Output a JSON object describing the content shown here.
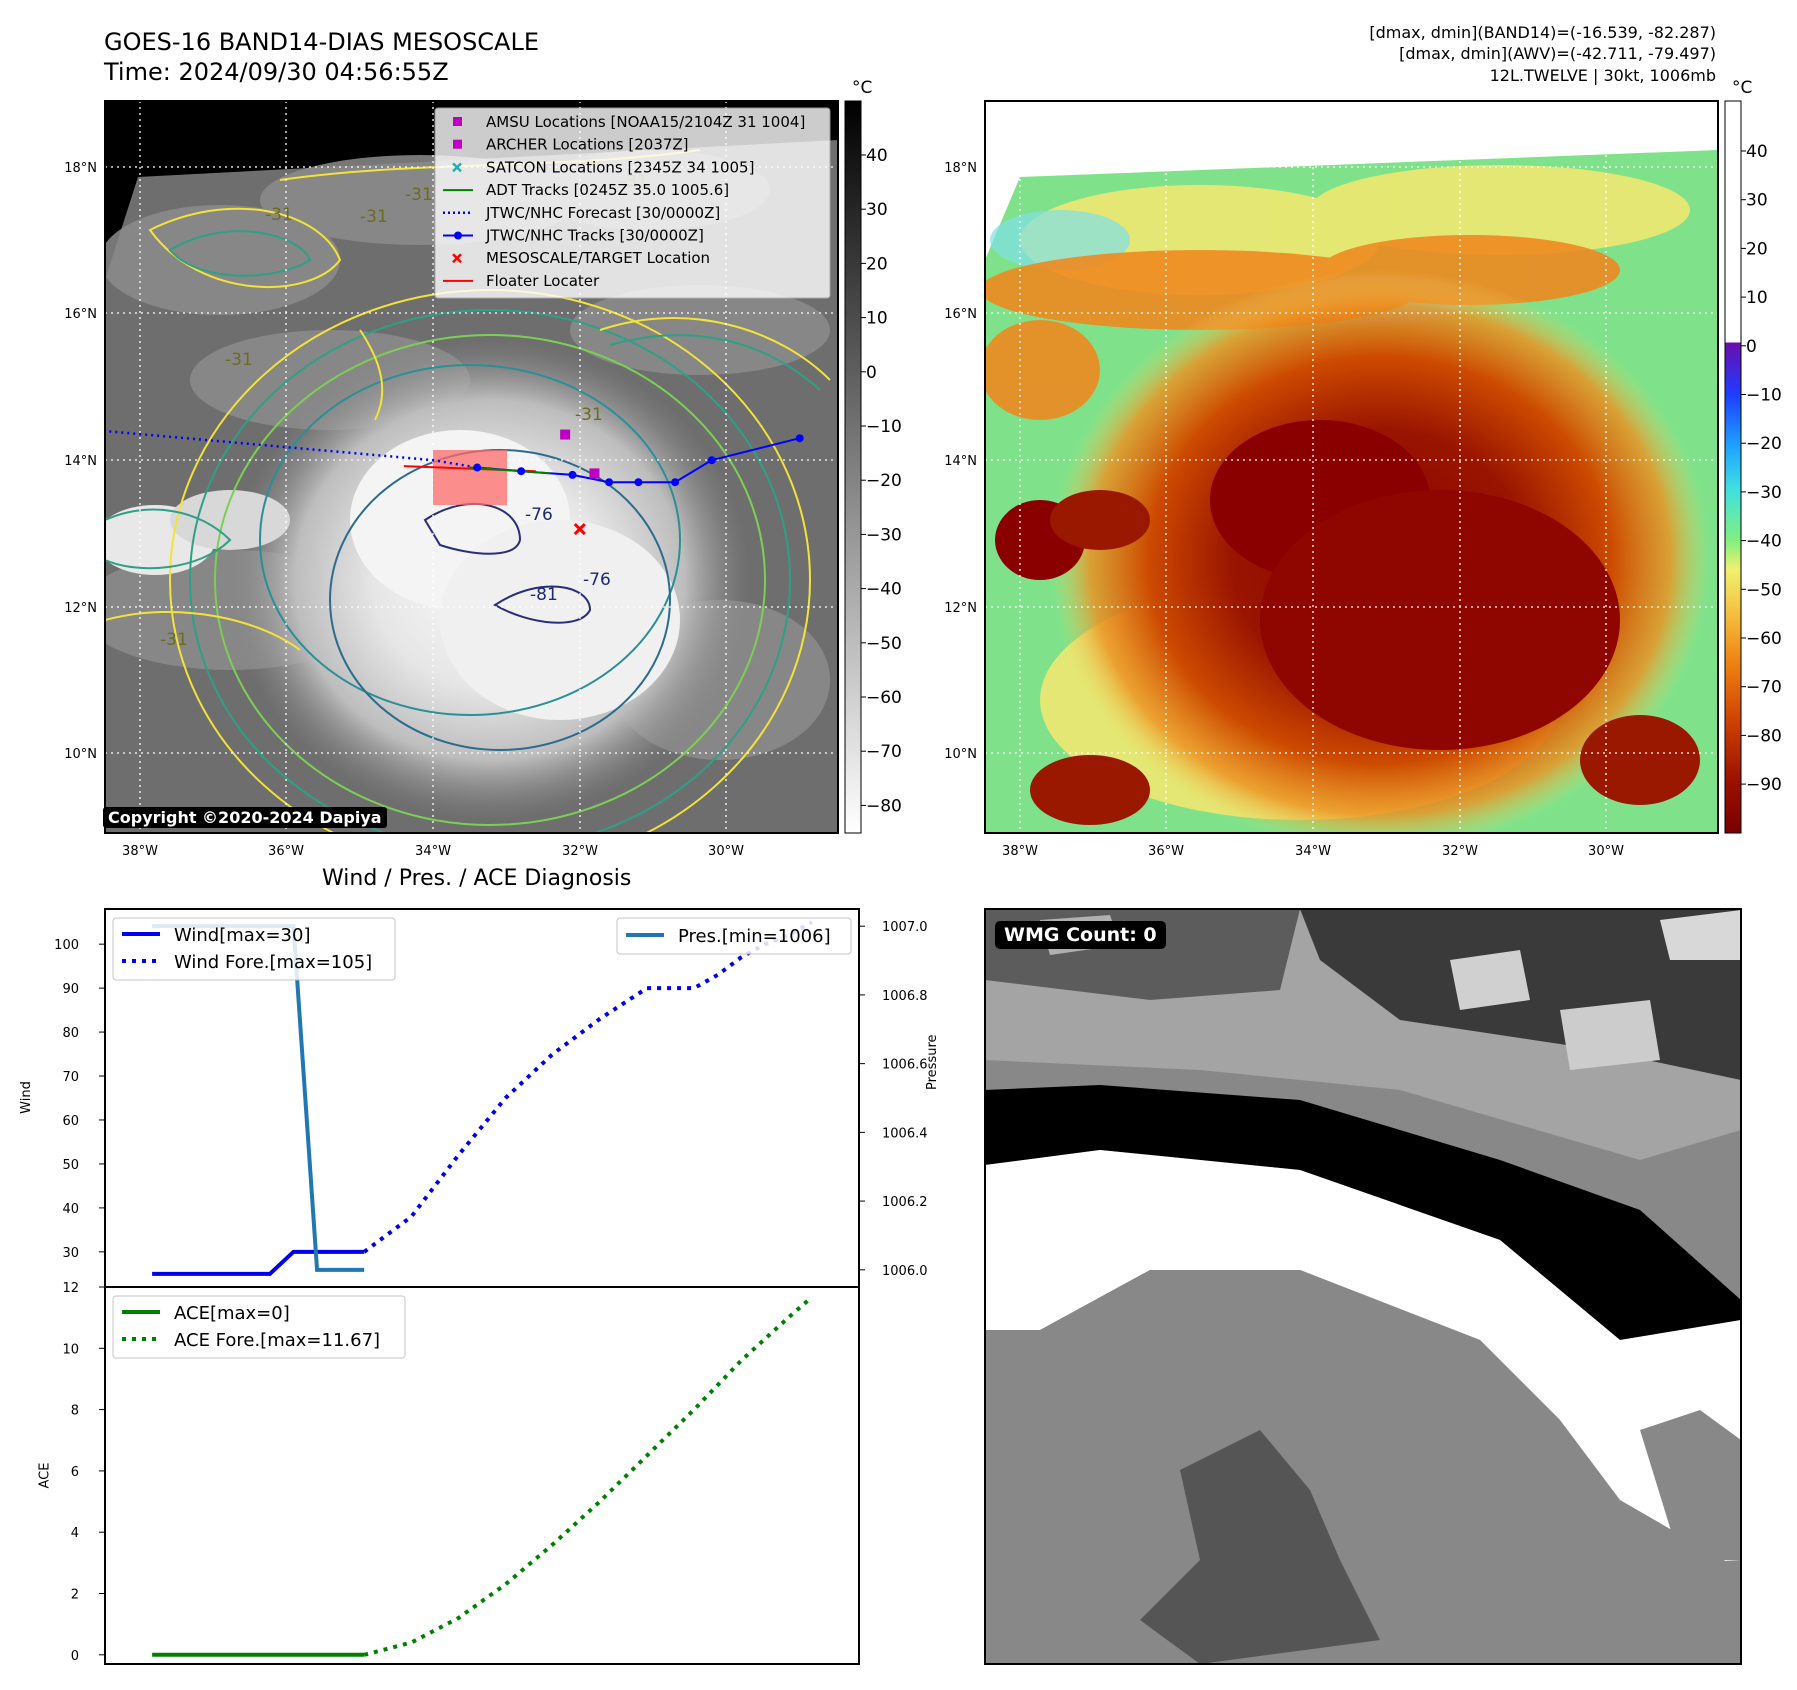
{
  "header": {
    "title_line1": "GOES-16 BAND14-DIAS MESOSCALE",
    "title_line2": "Time: 2024/09/30 04:56:55Z",
    "info_line1": "[dmax, dmin](BAND14)=(-16.539, -82.287)",
    "info_line2": "[dmax, dmin](AWV)=(-42.711, -79.497)",
    "info_line3": "12L.TWELVE | 30kt, 1006mb"
  },
  "ir_panel": {
    "copyright": "Copyright ©2020-2024 Dapiya",
    "colorbar_unit": "°C",
    "colorbar_ticks": [
      "40",
      "30",
      "20",
      "10",
      "0",
      "−10",
      "−20",
      "−30",
      "−40",
      "−50",
      "−60",
      "−70",
      "−80"
    ],
    "lat_labels": [
      "18°N",
      "16°N",
      "14°N",
      "12°N",
      "10°N"
    ],
    "lon_labels": [
      "38°W",
      "36°W",
      "34°W",
      "32°W",
      "30°W"
    ],
    "contour_labels": [
      "-31",
      "-31",
      "-31",
      "-31",
      "-31",
      "-76",
      "-76",
      "-81",
      "-31",
      "-31"
    ],
    "legend": [
      {
        "label": "AMSU Locations [NOAA15/2104Z 31 1004]",
        "marker": "square",
        "color": "#c000c0"
      },
      {
        "label": "ARCHER Locations [2037Z]",
        "marker": "square",
        "color": "#c000c0"
      },
      {
        "label": "SATCON Locations [2345Z 34 1005]",
        "marker": "x",
        "color": "#20b0b0"
      },
      {
        "label": "ADT Tracks [0245Z 35.0 1005.6]",
        "marker": "line",
        "color": "#008000"
      },
      {
        "label": "JTWC/NHC Forecast [30/0000Z]",
        "marker": "dotted",
        "color": "#0000ff"
      },
      {
        "label": "JTWC/NHC Tracks [30/0000Z]",
        "marker": "line-dot",
        "color": "#0000ff"
      },
      {
        "label": "MESOSCALE/TARGET Location",
        "marker": "x",
        "color": "#ff0000"
      },
      {
        "label": "Floater Locater",
        "marker": "line",
        "color": "#ff0000"
      }
    ],
    "track_points": [
      {
        "lon": -33.4,
        "lat": 13.9
      },
      {
        "lon": -32.8,
        "lat": 13.85
      },
      {
        "lon": -32.1,
        "lat": 13.8
      },
      {
        "lon": -31.6,
        "lat": 13.7
      },
      {
        "lon": -31.2,
        "lat": 13.7
      },
      {
        "lon": -30.7,
        "lat": 13.7
      },
      {
        "lon": -30.2,
        "lat": 14.0
      },
      {
        "lon": -29.0,
        "lat": 14.3
      }
    ]
  },
  "awv_panel": {
    "colorbar_unit": "°C",
    "colorbar_ticks": [
      "40",
      "30",
      "20",
      "10",
      "0",
      "−10",
      "−20",
      "−30",
      "−40",
      "−50",
      "−60",
      "−70",
      "−80",
      "−90"
    ],
    "lat_labels": [
      "18°N",
      "16°N",
      "14°N",
      "12°N",
      "10°N"
    ],
    "lon_labels": [
      "38°W",
      "36°W",
      "34°W",
      "32°W",
      "30°W"
    ]
  },
  "wmg_panel": {
    "badge": "WMG Count: 0"
  },
  "colors": {
    "wind": "#0000ee",
    "pres": "#1f77b4",
    "ace": "#008000"
  },
  "chart_data": [
    {
      "type": "line",
      "title": "Wind / Pres. / ACE Diagnosis",
      "ylabel": "Wind",
      "ylim": [
        22,
        108
      ],
      "y2label": "Pressure",
      "y2lim": [
        1005.95,
        1007.05
      ],
      "xlim": [
        -2,
        30
      ],
      "yticks": [
        "30",
        "40",
        "50",
        "60",
        "70",
        "80",
        "90",
        "100"
      ],
      "y2ticks": [
        "1006.0",
        "1006.2",
        "1006.4",
        "1006.6",
        "1006.8",
        "1007.0"
      ],
      "series": [
        {
          "name": "Wind[max=30]",
          "style": "solid",
          "axis": "left",
          "x": [
            0,
            1,
            2,
            3,
            4,
            5,
            6,
            7,
            8,
            9
          ],
          "y": [
            25,
            25,
            25,
            25,
            25,
            25,
            30,
            30,
            30,
            30
          ]
        },
        {
          "name": "Wind Fore.[max=105]",
          "style": "dotted",
          "axis": "left",
          "x": [
            9,
            11,
            13,
            15,
            17,
            19,
            21,
            22,
            23,
            24,
            25,
            26,
            27,
            28
          ],
          "y": [
            30,
            38,
            52,
            65,
            75,
            83,
            90,
            90,
            90,
            93,
            97,
            100,
            102,
            105
          ]
        },
        {
          "name": "Pres.[min=1006]",
          "style": "solid",
          "axis": "right",
          "x": [
            0,
            1,
            2,
            3,
            4,
            5,
            6,
            7,
            8,
            9
          ],
          "y": [
            1007.0,
            1007.0,
            1007.0,
            1007.0,
            1007.0,
            1007.0,
            1007.0,
            1006.0,
            1006.0,
            1006.0
          ]
        }
      ]
    },
    {
      "type": "line",
      "ylabel": "ACE",
      "ylim": [
        -0.3,
        12
      ],
      "xlim": [
        -2,
        30
      ],
      "yticks": [
        "0",
        "2",
        "4",
        "6",
        "8",
        "10",
        "12"
      ],
      "series": [
        {
          "name": "ACE[max=0]",
          "style": "solid",
          "x": [
            0,
            1,
            2,
            3,
            4,
            5,
            6,
            7,
            8,
            9
          ],
          "y": [
            0,
            0,
            0,
            0,
            0,
            0,
            0,
            0,
            0,
            0
          ]
        },
        {
          "name": "ACE Fore.[max=11.67]",
          "style": "dotted",
          "x": [
            9,
            11,
            13,
            15,
            17,
            19,
            21,
            23,
            25,
            27,
            28
          ],
          "y": [
            0,
            0.4,
            1.2,
            2.3,
            3.6,
            5.0,
            6.5,
            8.0,
            9.6,
            11.0,
            11.67
          ]
        }
      ]
    }
  ]
}
